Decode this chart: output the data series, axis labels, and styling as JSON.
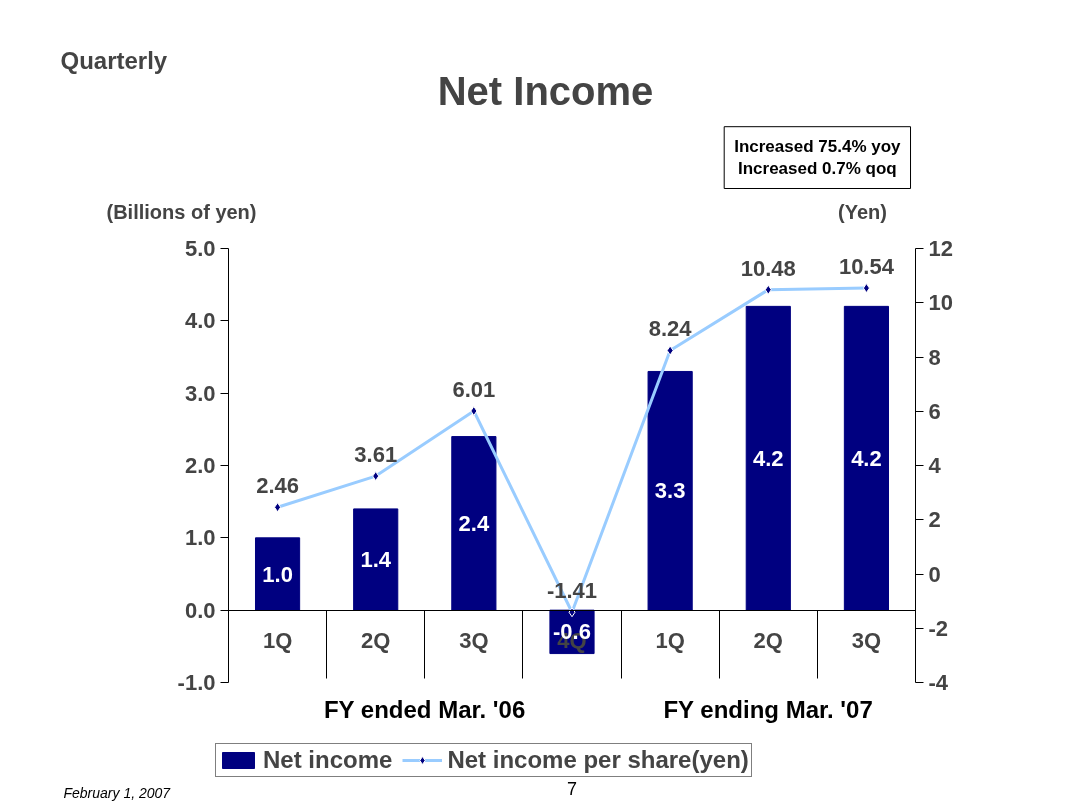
{
  "chart_data": {
    "type": "bar",
    "title": "Net Income",
    "subtitle": "Quarterly",
    "ylabel": "(Billions of yen)",
    "y2label": "(Yen)",
    "categories": [
      "1Q",
      "2Q",
      "3Q",
      "4Q",
      "1Q",
      "2Q",
      "3Q"
    ],
    "series": [
      {
        "name": "Net income",
        "color": "#000080",
        "values": [
          1.0,
          1.4,
          2.4,
          -0.6,
          3.3,
          4.2,
          4.2
        ],
        "value_labels": [
          "1.0",
          "1.4",
          "2.4",
          "-0.6",
          "3.3",
          "4.2",
          "4.2"
        ]
      },
      {
        "name": "Net income per share(yen)",
        "type": "line",
        "axis": "y2",
        "color": "#99ccff",
        "marker": "diamond",
        "values": [
          2.46,
          3.61,
          6.01,
          -1.41,
          8.24,
          10.48,
          10.54
        ]
      }
    ],
    "ylim": [
      -1,
      5
    ],
    "yticks": [
      {
        "value": -1,
        "label": "-1.0"
      },
      {
        "value": 0,
        "label": "0.0"
      },
      {
        "value": 1,
        "label": "1.0"
      },
      {
        "value": 2,
        "label": "2.0"
      },
      {
        "value": 3,
        "label": "3.0"
      },
      {
        "value": 4,
        "label": "4.0"
      },
      {
        "value": 5,
        "label": "5.0"
      }
    ],
    "y2lim": [
      -4,
      12
    ],
    "y2ticks": [
      -4,
      -2,
      0,
      2,
      4,
      6,
      8,
      10,
      12
    ],
    "data_labels": true,
    "grid": false,
    "legend": "bottom",
    "annotations": [
      "FY ended Mar. '06",
      "FY ending Mar. '07",
      "Increased 75.4% yoy\nIncreased 0.7% qoq",
      "7",
      "February 1, 2007"
    ]
  }
}
